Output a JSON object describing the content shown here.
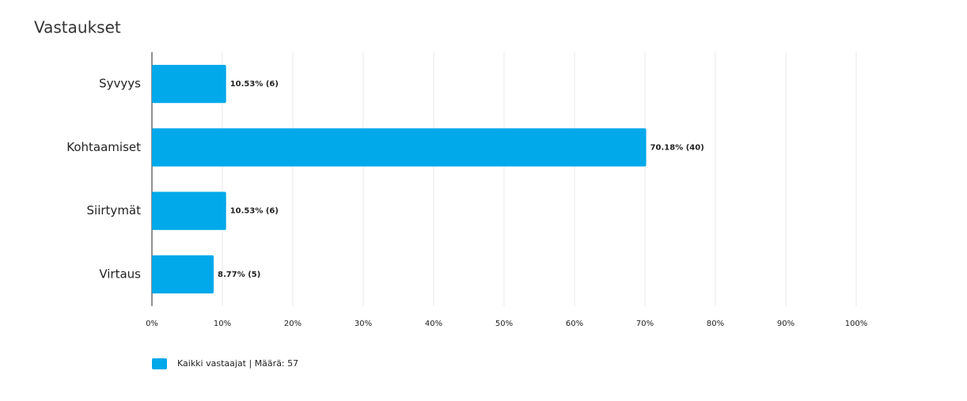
{
  "chart_data": {
    "type": "bar",
    "orientation": "horizontal",
    "title": "Vastaukset",
    "categories": [
      "Syvyys",
      "Kohtaamiset",
      "Siirtymät",
      "Virtaus"
    ],
    "series": [
      {
        "name": "Kaikki vastaajat | Määrä: 57",
        "color": "#02a9ea",
        "values": [
          10.53,
          70.18,
          10.53,
          8.77
        ],
        "value_labels": [
          "10.53% (6)",
          "70.18% (40)",
          "10.53% (6)",
          "8.77% (5)"
        ]
      }
    ],
    "xlim": [
      0,
      100
    ],
    "xticks": [
      {
        "value": 0,
        "label": "0%"
      },
      {
        "value": 10,
        "label": "10%"
      },
      {
        "value": 20,
        "label": "20%"
      },
      {
        "value": 30,
        "label": "30%"
      },
      {
        "value": 40,
        "label": "40%"
      },
      {
        "value": 50,
        "label": "50%"
      },
      {
        "value": 60,
        "label": "60%"
      },
      {
        "value": 70,
        "label": "70%"
      },
      {
        "value": 80,
        "label": "80%"
      },
      {
        "value": 90,
        "label": "90%"
      },
      {
        "value": 100,
        "label": "100%"
      }
    ],
    "grid": true
  }
}
